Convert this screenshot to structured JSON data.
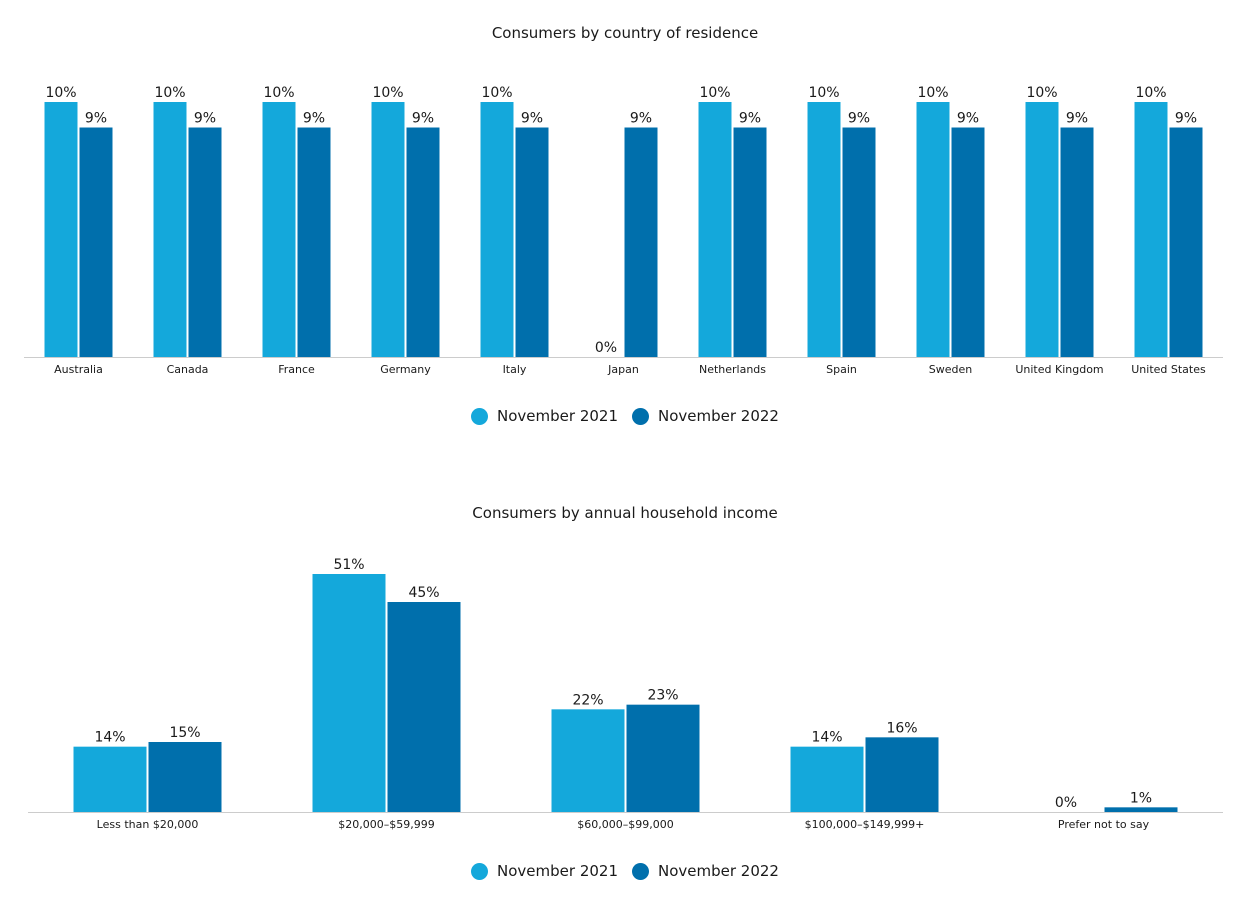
{
  "colors": {
    "series1": "#14a8db",
    "series2": "#006fac",
    "axis": "#cccccc"
  },
  "chart_data": [
    {
      "type": "bar",
      "title": "Consumers by country of residence",
      "categories": [
        "Australia",
        "Canada",
        "France",
        "Germany",
        "Italy",
        "Japan",
        "Netherlands",
        "Spain",
        "Sweden",
        "United Kingdom",
        "United States"
      ],
      "series": [
        {
          "name": "November 2021",
          "values": [
            10,
            10,
            10,
            10,
            10,
            0,
            10,
            10,
            10,
            10,
            10
          ],
          "labels": [
            "10%",
            "10%",
            "10%",
            "10%",
            "10%",
            "0%",
            "10%",
            "10%",
            "10%",
            "10%",
            "10%"
          ]
        },
        {
          "name": "November 2022",
          "values": [
            9,
            9,
            9,
            9,
            9,
            9,
            9,
            9,
            9,
            9,
            9
          ],
          "labels": [
            "9%",
            "9%",
            "9%",
            "9%",
            "9%",
            "9%",
            "9%",
            "9%",
            "9%",
            "9%",
            "9%"
          ]
        }
      ],
      "ylim": [
        0,
        10
      ],
      "legend": "bottom"
    },
    {
      "type": "bar",
      "title": "Consumers by annual household income",
      "categories": [
        "Less than $20,000",
        "$20,000–$59,999",
        "$60,000–$99,000",
        "$100,000–$149,999+",
        "Prefer not to say"
      ],
      "series": [
        {
          "name": "November 2021",
          "values": [
            14,
            51,
            22,
            14,
            0
          ],
          "labels": [
            "14%",
            "51%",
            "22%",
            "14%",
            "0%"
          ]
        },
        {
          "name": "November 2022",
          "values": [
            15,
            45,
            23,
            16,
            1
          ],
          "labels": [
            "15%",
            "45%",
            "23%",
            "16%",
            "1%"
          ]
        }
      ],
      "ylim": [
        0,
        51
      ],
      "legend": "bottom"
    }
  ]
}
